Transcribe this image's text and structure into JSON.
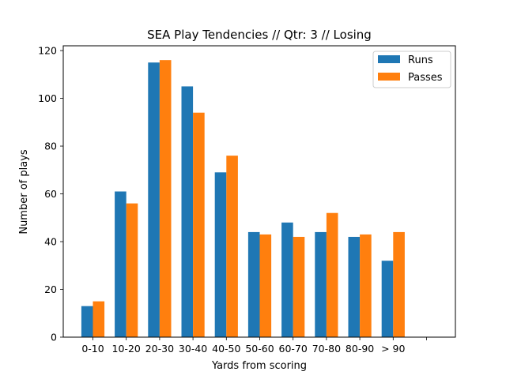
{
  "chart_data": {
    "type": "bar",
    "title": "SEA Play Tendencies // Qtr: 3 // Losing",
    "xlabel": "Yards from scoring",
    "ylabel": "Number of plays",
    "categories": [
      "0-10",
      "10-20",
      "20-30",
      "30-40",
      "40-50",
      "50-60",
      "60-70",
      "70-80",
      "80-90",
      "> 90",
      ""
    ],
    "series": [
      {
        "name": "Runs",
        "color": "#1f77b4",
        "values": [
          13,
          61,
          115,
          105,
          69,
          44,
          48,
          44,
          42,
          32,
          null
        ]
      },
      {
        "name": "Passes",
        "color": "#ff7f0e",
        "values": [
          15,
          56,
          116,
          94,
          76,
          43,
          42,
          52,
          43,
          44,
          null
        ]
      }
    ],
    "ylim": [
      0,
      122
    ],
    "yticks": [
      0,
      20,
      40,
      60,
      80,
      100,
      120
    ],
    "grid": false,
    "legend_position": "top-right"
  }
}
